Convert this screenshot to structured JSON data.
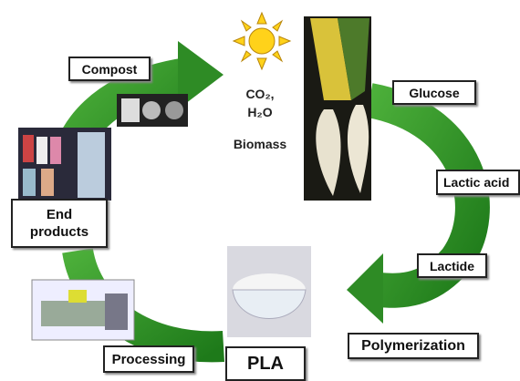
{
  "cycle": {
    "compost": "Compost",
    "co2": "CO₂,",
    "h2o": "H₂O",
    "biomass": "Biomass",
    "glucose": "Glucose",
    "lactic_acid": "Lactic acid",
    "lactide": "Lactide",
    "polymerization": "Polymerization",
    "pla": "PLA",
    "processing": "Processing",
    "end_products": "End products"
  }
}
